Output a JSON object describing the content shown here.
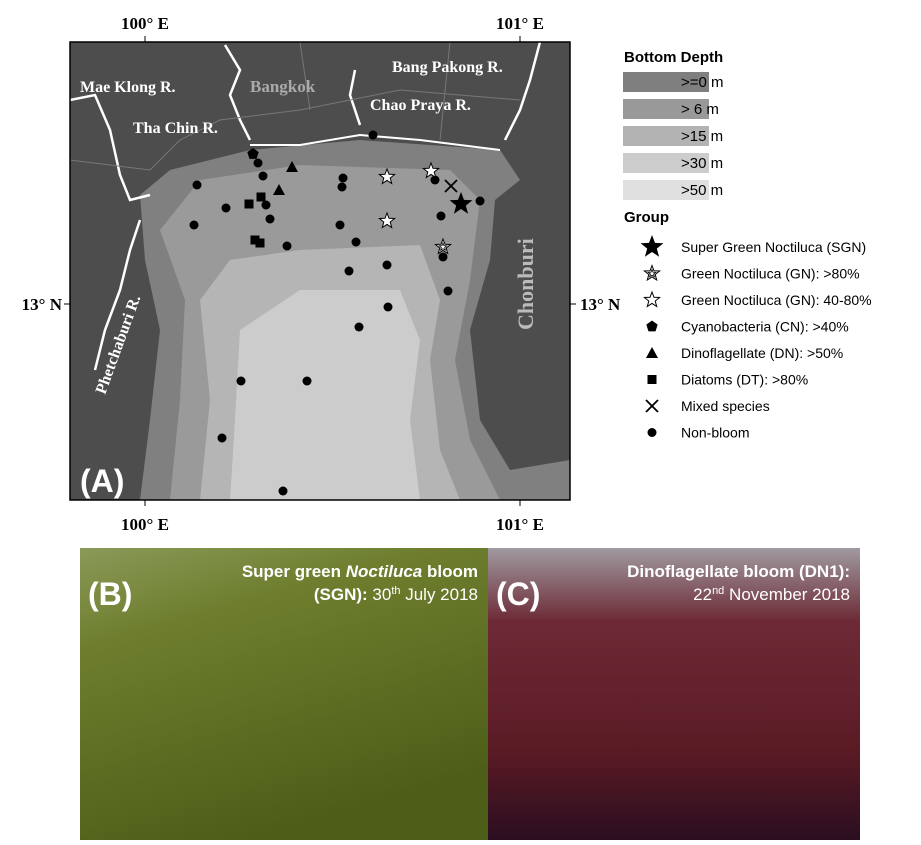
{
  "map": {
    "panel_label": "(A)",
    "x_axis_labels": [
      "100° E",
      "101° E"
    ],
    "y_axis_label": "13° N",
    "places": [
      "Mae Klong R.",
      "Bangkok",
      "Bang Pakong R.",
      "Chao Praya R.",
      "Tha Chin R.",
      "Phetchaburi R.",
      "Chonburi"
    ]
  },
  "legend": {
    "depth_title": "Bottom Depth",
    "depth_items": [
      ">=0 m",
      "> 6 m",
      ">15 m",
      ">30 m",
      ">50 m"
    ],
    "group_title": "Group",
    "group_items": [
      "Super Green Noctiluca (SGN)",
      "Green Noctiluca (GN): >80%",
      "Green Noctiluca (GN): 40-80%",
      "Cyanobacteria (CN): >40%",
      "Dinoflagellate (DN): >50%",
      "Diatoms (DT): >80%",
      "Mixed species",
      "Non-bloom"
    ]
  },
  "photos": [
    {
      "panel_label": "(B)",
      "line1_pre": "Super green ",
      "line1_italic": "Noctiluca",
      "line1_post": " bloom",
      "line2_bold": "(SGN):",
      "line2_day": " 30",
      "line2_sup": "th",
      "line2_rest": " July 2018"
    },
    {
      "panel_label": "(C)",
      "line1_pre": "Dinoflagellate bloom (DN1):",
      "line2_day": "22",
      "line2_sup": "nd",
      "line2_rest": " November 2018"
    }
  ]
}
